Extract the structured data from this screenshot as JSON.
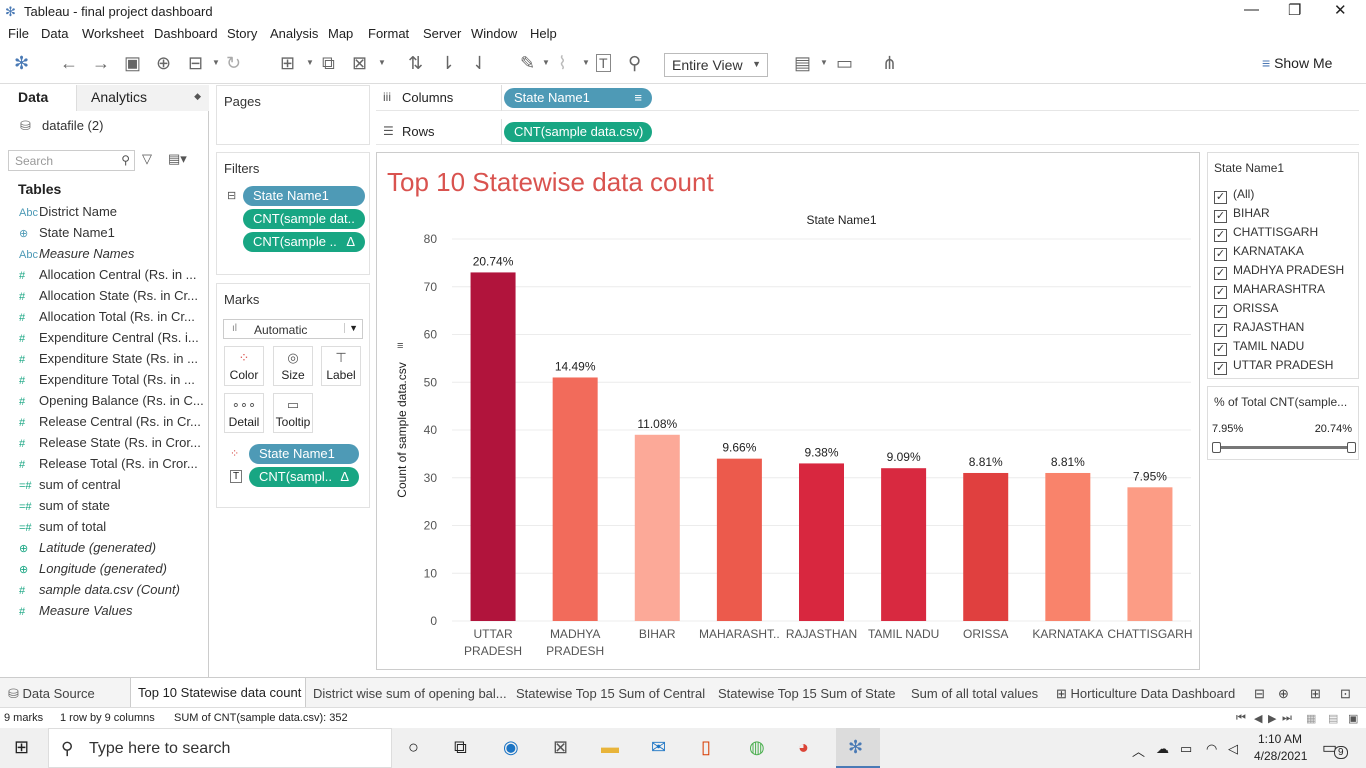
{
  "window": {
    "title": "Tableau - final project dashboard"
  },
  "menu": [
    "File",
    "Data",
    "Worksheet",
    "Dashboard",
    "Story",
    "Analysis",
    "Map",
    "Format",
    "Server",
    "Window",
    "Help"
  ],
  "toolbar": {
    "view_mode": "Entire View",
    "show_me": "Show Me"
  },
  "left": {
    "tab_data": "Data",
    "tab_analytics": "Analytics",
    "datasource": "datafile (2)",
    "search_placeholder": "Search",
    "tables_heading": "Tables",
    "fields": [
      {
        "icon": "Abc",
        "name": "District Name",
        "italic": false,
        "color": "#4e9ab6"
      },
      {
        "icon": "globe",
        "name": "State Name1",
        "italic": false,
        "color": "#4e9ab6"
      },
      {
        "icon": "Abc",
        "name": "Measure Names",
        "italic": true,
        "color": "#4e9ab6"
      },
      {
        "icon": "#",
        "name": "Allocation Central (Rs. in ...",
        "italic": false,
        "color": "#18a683"
      },
      {
        "icon": "#",
        "name": "Allocation State (Rs. in Cr...",
        "italic": false,
        "color": "#18a683"
      },
      {
        "icon": "#",
        "name": "Allocation Total (Rs. in Cr...",
        "italic": false,
        "color": "#18a683"
      },
      {
        "icon": "#",
        "name": "Expenditure Central (Rs. i...",
        "italic": false,
        "color": "#18a683"
      },
      {
        "icon": "#",
        "name": "Expenditure State (Rs. in ...",
        "italic": false,
        "color": "#18a683"
      },
      {
        "icon": "#",
        "name": "Expenditure Total (Rs. in ...",
        "italic": false,
        "color": "#18a683"
      },
      {
        "icon": "#",
        "name": "Opening Balance (Rs. in C...",
        "italic": false,
        "color": "#18a683"
      },
      {
        "icon": "#",
        "name": "Release Central (Rs. in Cr...",
        "italic": false,
        "color": "#18a683"
      },
      {
        "icon": "#",
        "name": "Release State (Rs. in Cror...",
        "italic": false,
        "color": "#18a683"
      },
      {
        "icon": "#",
        "name": "Release Total (Rs. in Cror...",
        "italic": false,
        "color": "#18a683"
      },
      {
        "icon": "=#",
        "name": "sum of central",
        "italic": false,
        "color": "#18a683"
      },
      {
        "icon": "=#",
        "name": "sum of state",
        "italic": false,
        "color": "#18a683"
      },
      {
        "icon": "=#",
        "name": "sum of total",
        "italic": false,
        "color": "#18a683"
      },
      {
        "icon": "globe",
        "name": "Latitude (generated)",
        "italic": true,
        "color": "#18a683"
      },
      {
        "icon": "globe",
        "name": "Longitude (generated)",
        "italic": true,
        "color": "#18a683"
      },
      {
        "icon": "#",
        "name": "sample data.csv (Count)",
        "italic": true,
        "color": "#18a683"
      },
      {
        "icon": "#",
        "name": "Measure Values",
        "italic": true,
        "color": "#18a683"
      }
    ]
  },
  "shelves": {
    "pages": "Pages",
    "filters": "Filters",
    "marks": "Marks",
    "columns": "Columns",
    "rows": "Rows",
    "columns_pill": "State Name1",
    "rows_pill": "CNT(sample data.csv)",
    "filter_pills": [
      "State Name1",
      "CNT(sample dat..",
      "CNT(sample .."
    ],
    "marks_type": "Automatic",
    "mark_buttons": [
      "Color",
      "Size",
      "Label",
      "Detail",
      "Tooltip"
    ],
    "mark_pills": [
      "State Name1",
      "CNT(sampl.."
    ]
  },
  "chart_data": {
    "type": "bar",
    "title": "Top 10 Statewise data count",
    "header": "State Name1",
    "ylabel": "Count of sample data.csv",
    "ylim": [
      0,
      80
    ],
    "yticks": [
      0,
      10,
      20,
      30,
      40,
      50,
      60,
      70,
      80
    ],
    "categories": [
      [
        "UTTAR",
        "PRADESH"
      ],
      [
        "MADHYA",
        "PRADESH"
      ],
      [
        "BIHAR"
      ],
      [
        "MAHARASHT.."
      ],
      [
        "RAJASTHAN"
      ],
      [
        "TAMIL NADU"
      ],
      [
        "ORISSA"
      ],
      [
        "KARNATAKA"
      ],
      [
        "CHATTISGARH"
      ]
    ],
    "values": [
      73,
      51,
      39,
      34,
      33,
      32,
      31,
      31,
      28
    ],
    "labels": [
      "20.74%",
      "14.49%",
      "11.08%",
      "9.66%",
      "9.38%",
      "9.09%",
      "8.81%",
      "8.81%",
      "7.95%"
    ],
    "colors": [
      "#b1143c",
      "#f26b5b",
      "#fca998",
      "#ec5a4c",
      "#d8273f",
      "#d82940",
      "#e0403f",
      "#f9836b",
      "#fc9c85"
    ]
  },
  "legend": {
    "title": "State Name1",
    "items": [
      "(All)",
      "BIHAR",
      "CHATTISGARH",
      "KARNATAKA",
      "MADHYA PRADESH",
      "MAHARASHTRA",
      "ORISSA",
      "RAJASTHAN",
      "TAMIL NADU",
      "UTTAR PRADESH"
    ]
  },
  "pct": {
    "title": "% of Total CNT(sample...",
    "min": "7.95%",
    "max": "20.74%"
  },
  "tabs": [
    "Data Source",
    "Top 10 Statewise data count",
    "District wise sum of opening bal...",
    "Statewise Top 15  Sum of Central",
    "Statewise Top 15  Sum of State",
    "Sum of all total values",
    "Horticulture Data Dashboard"
  ],
  "status": {
    "marks": "9 marks",
    "rows": "1 row by 9 columns",
    "sum": "SUM of CNT(sample data.csv): 352"
  },
  "taskbar": {
    "search": "Type here to search",
    "time": "1:10 AM",
    "date": "4/28/2021",
    "notif": "9"
  }
}
